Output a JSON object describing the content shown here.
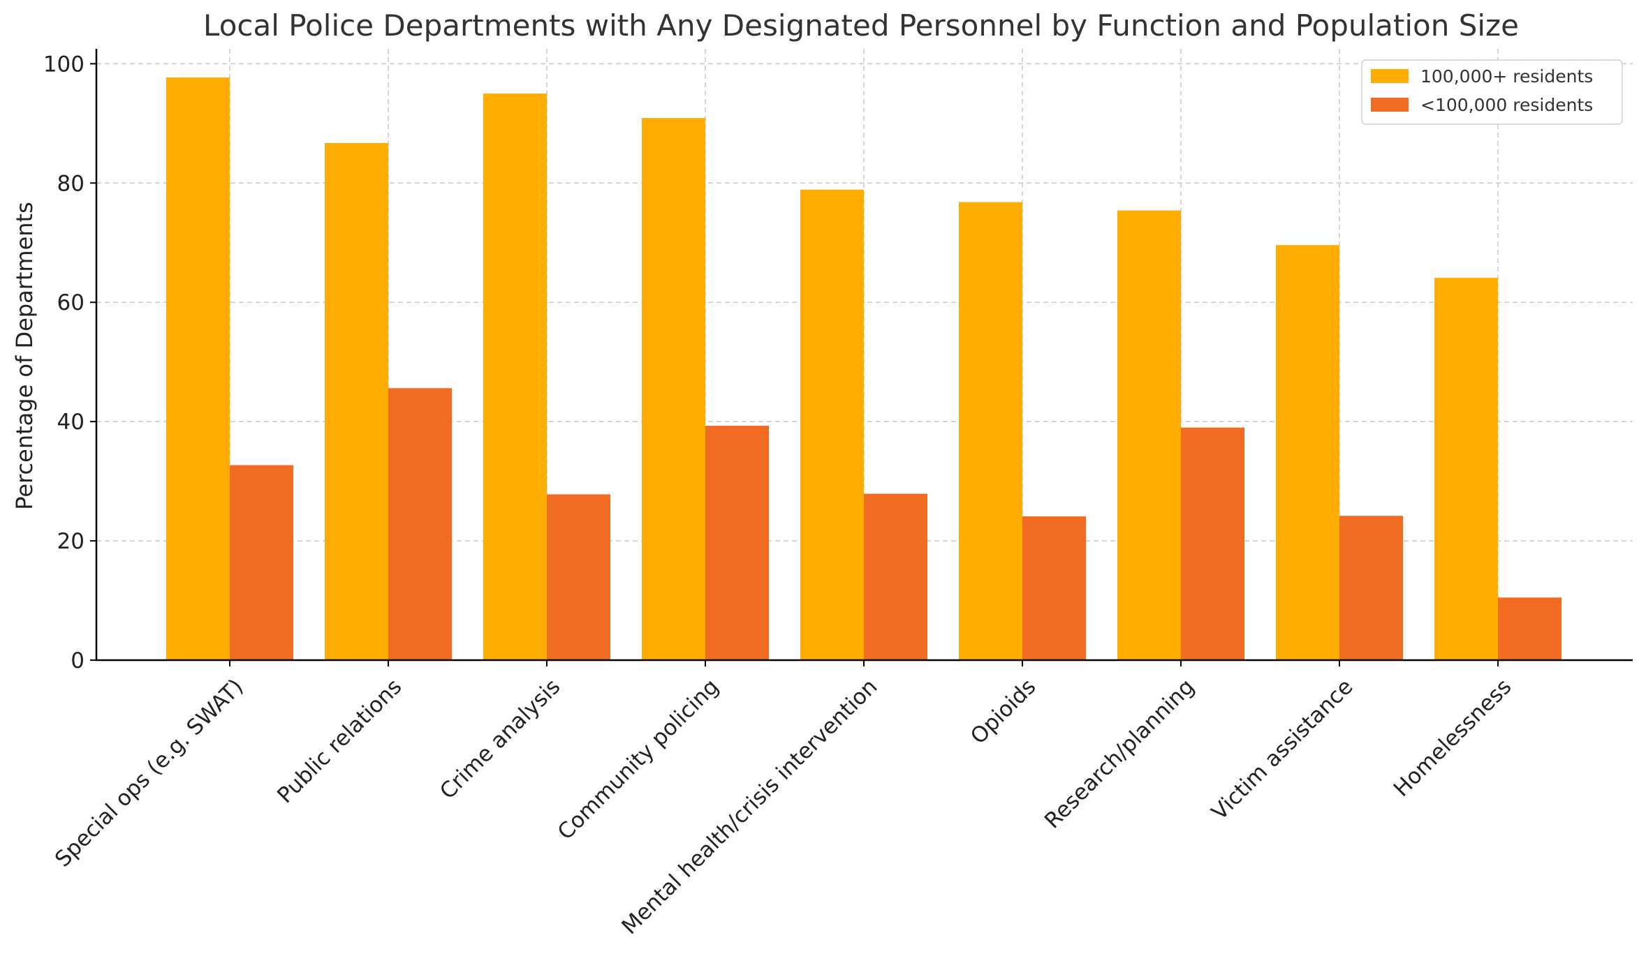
{
  "chart_data": {
    "type": "bar",
    "title": "Local Police Departments with Any Designated Personnel by Function and Population Size",
    "xlabel": "",
    "ylabel": "Percentage of Departments",
    "ylim": [
      0,
      102.5
    ],
    "yticks": [
      0,
      20,
      40,
      60,
      80,
      100
    ],
    "grid": true,
    "legend_position": "top-right",
    "categories": [
      "Special ops (e.g. SWAT)",
      "Public relations",
      "Crime analysis",
      "Community policing",
      "Mental health/crisis intervention",
      "Opioids",
      "Research/planning",
      "Victim assistance",
      "Homelessness"
    ],
    "series": [
      {
        "name": "100,000+ residents",
        "color": "#ffad02",
        "values": [
          97.7,
          86.7,
          95.0,
          90.9,
          78.9,
          76.8,
          75.4,
          69.6,
          64.1
        ]
      },
      {
        "name": "<100,000 residents",
        "color": "#f26b23",
        "values": [
          32.7,
          45.6,
          27.8,
          39.3,
          27.9,
          24.1,
          39.0,
          24.2,
          10.5
        ]
      }
    ]
  }
}
